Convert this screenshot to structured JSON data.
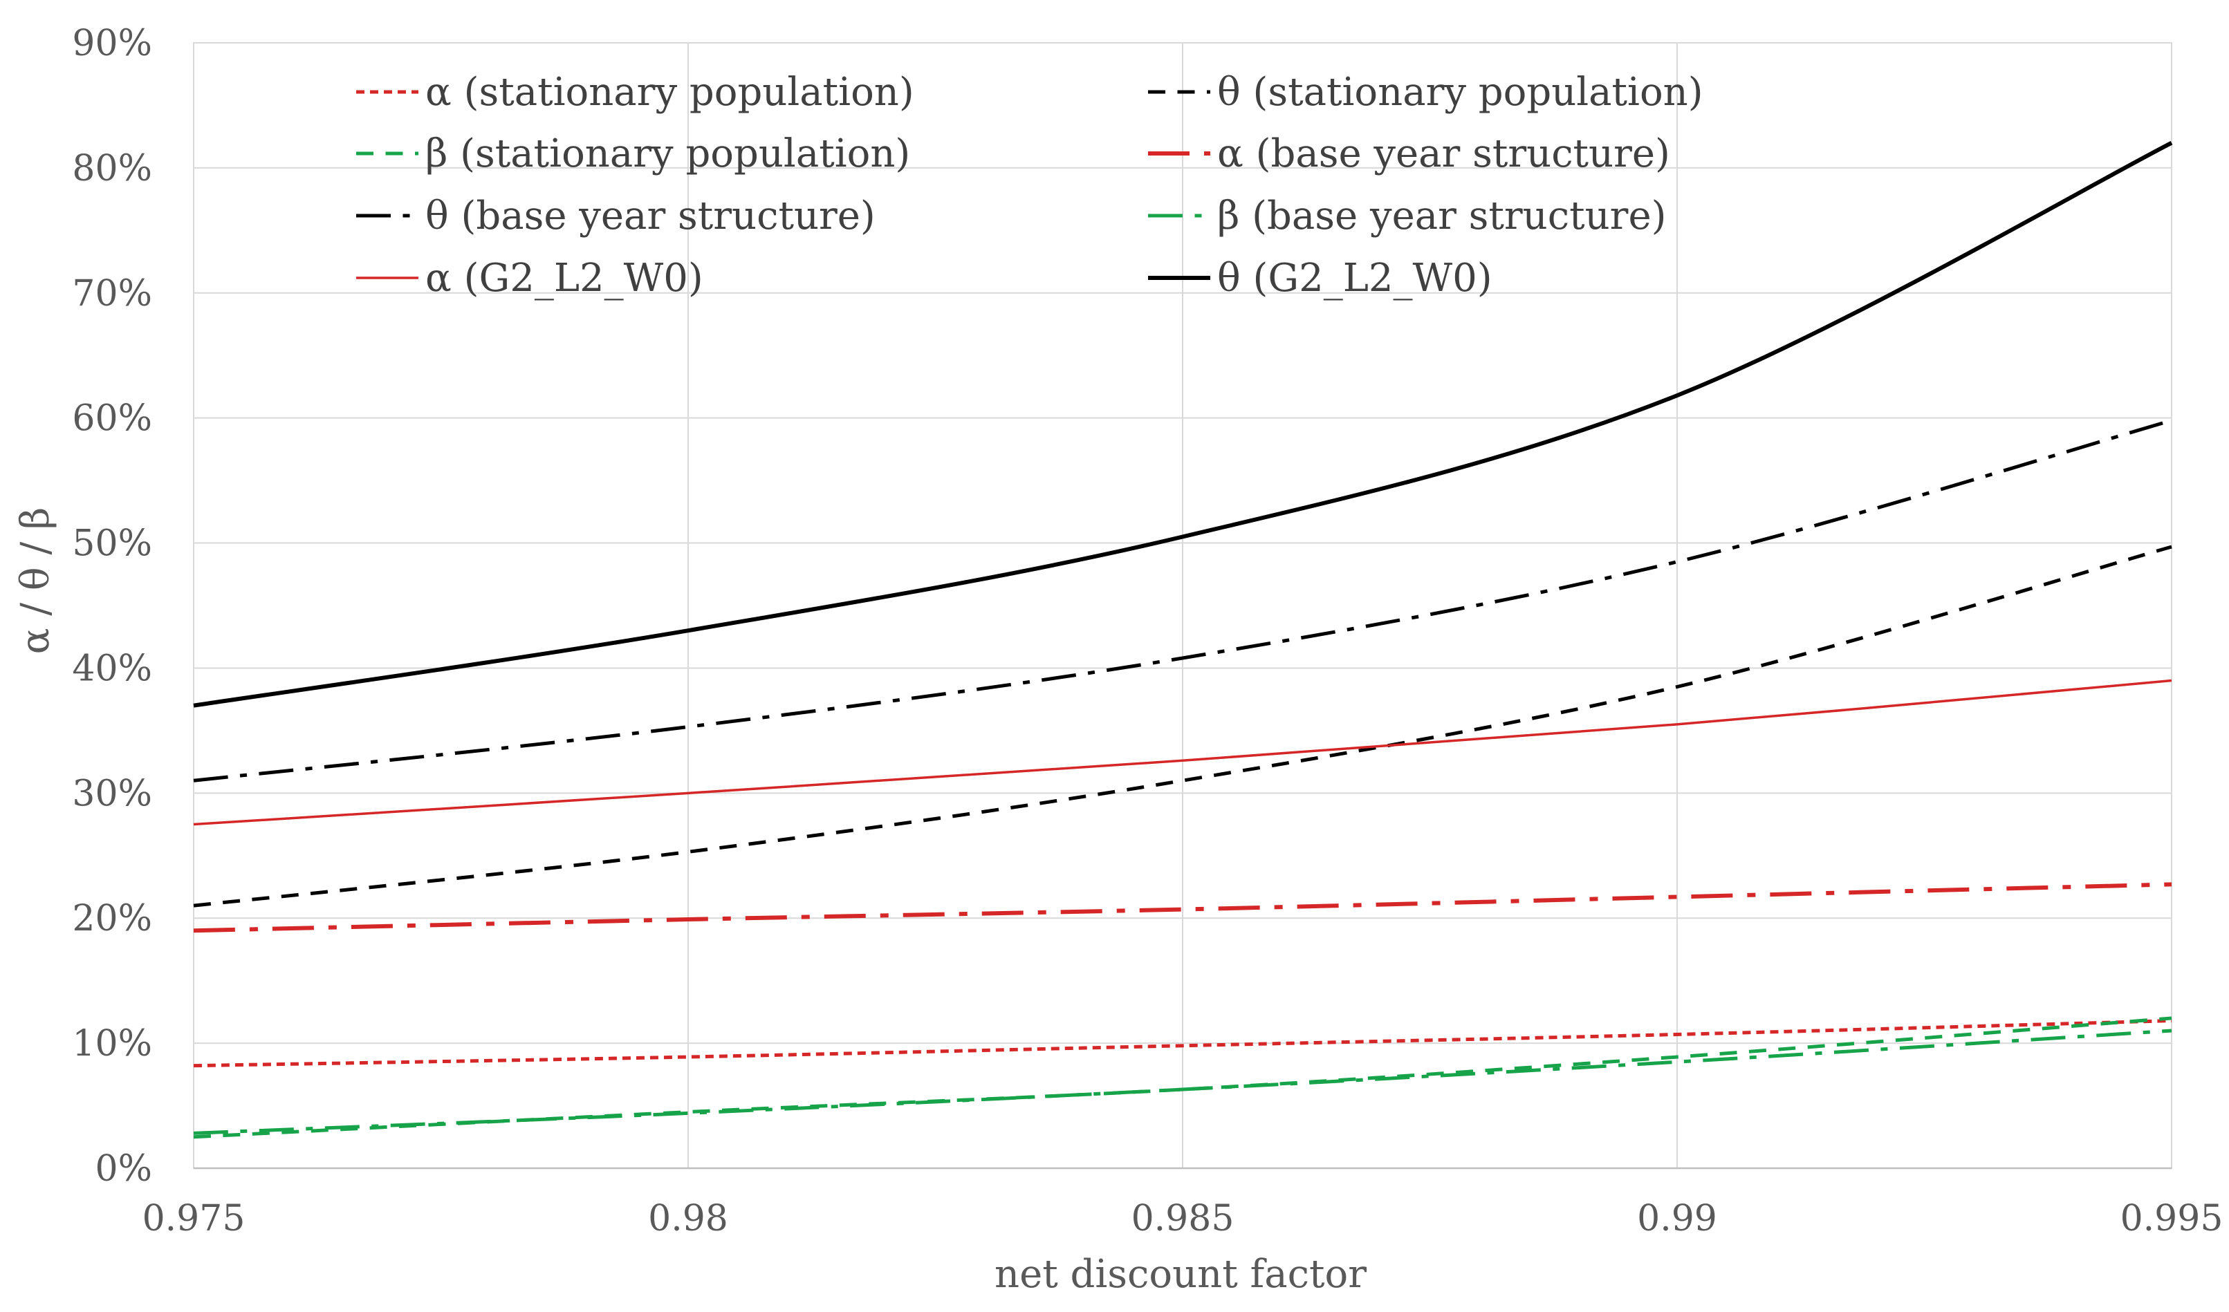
{
  "chart_data": {
    "type": "line",
    "title": "",
    "xlabel": "net discount factor",
    "ylabel": "α / θ / β",
    "xlim": [
      0.975,
      0.995
    ],
    "ylim": [
      0,
      0.9
    ],
    "x_ticks": [
      0.975,
      0.98,
      0.985,
      0.99,
      0.995
    ],
    "x_tick_labels": [
      "0.975",
      "0.98",
      "0.985",
      "0.99",
      "0.995"
    ],
    "y_ticks": [
      0,
      0.1,
      0.2,
      0.3,
      0.4,
      0.5,
      0.6,
      0.7,
      0.8,
      0.9
    ],
    "y_tick_labels": [
      "0%",
      "10%",
      "20%",
      "30%",
      "40%",
      "50%",
      "60%",
      "70%",
      "80%",
      "90%"
    ],
    "grid": true,
    "legend_position": "top",
    "x": [
      0.975,
      0.98,
      0.985,
      0.99,
      0.995
    ],
    "series": [
      {
        "name": "α (stationary population)",
        "color": "#d62728",
        "style": "dotted",
        "width": 5,
        "values": [
          0.082,
          0.089,
          0.098,
          0.107,
          0.118
        ]
      },
      {
        "name": "θ (stationary population)",
        "color": "#000000",
        "style": "dashed",
        "width": 5,
        "values": [
          0.21,
          0.253,
          0.31,
          0.385,
          0.497
        ]
      },
      {
        "name": "β (stationary population)",
        "color": "#16a34a",
        "style": "dashed",
        "width": 5,
        "values": [
          0.025,
          0.045,
          0.063,
          0.089,
          0.12
        ]
      },
      {
        "name": "α (base year structure)",
        "color": "#d62728",
        "style": "dashdot",
        "width": 6,
        "values": [
          0.19,
          0.199,
          0.207,
          0.217,
          0.227
        ]
      },
      {
        "name": "θ (base year structure)",
        "color": "#000000",
        "style": "dashdot",
        "width": 5,
        "values": [
          0.31,
          0.353,
          0.408,
          0.485,
          0.598
        ]
      },
      {
        "name": "β (base year structure)",
        "color": "#16a34a",
        "style": "dashdot",
        "width": 5,
        "values": [
          0.028,
          0.044,
          0.063,
          0.085,
          0.11
        ]
      },
      {
        "name": "α (G2_L2_W0)",
        "color": "#d62728",
        "style": "solid",
        "width": 3.5,
        "values": [
          0.275,
          0.3,
          0.326,
          0.355,
          0.39
        ]
      },
      {
        "name": "θ (G2_L2_W0)",
        "color": "#000000",
        "style": "solid",
        "width": 6,
        "values": [
          0.37,
          0.43,
          0.505,
          0.618,
          0.82
        ]
      }
    ],
    "legend": [
      {
        "label": "α (stationary population)"
      },
      {
        "label": "θ (stationary population)"
      },
      {
        "label": "β (stationary population)"
      },
      {
        "label": "α (base year structure)"
      },
      {
        "label": "θ (base year structure)"
      },
      {
        "label": "β (base year structure)"
      },
      {
        "label": "α (G2_L2_W0)"
      },
      {
        "label": "θ (G2_L2_W0)"
      }
    ]
  }
}
